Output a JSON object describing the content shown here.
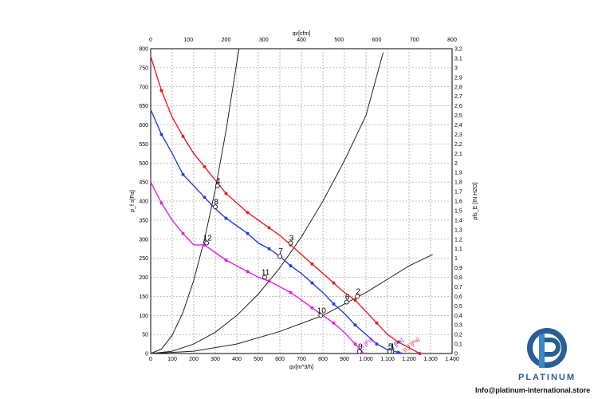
{
  "chart_data": {
    "type": "line",
    "x_bottom": {
      "label": "qv[m^3/h]",
      "range": [
        0,
        1400
      ],
      "ticks": [
        0,
        100,
        200,
        300,
        400,
        500,
        600,
        700,
        800,
        900,
        1000,
        1100,
        1200,
        1300,
        1400
      ],
      "tick_labels": [
        "0",
        "100",
        "200",
        "300",
        "400",
        "500",
        "600",
        "700",
        "800",
        "900",
        "1.000",
        "1.100",
        "1.200",
        "1.300",
        "1.400"
      ]
    },
    "x_top": {
      "label": "qv[cfm]",
      "range": [
        0,
        800
      ],
      "ticks": [
        0,
        100,
        200,
        300,
        400,
        500,
        600,
        700,
        800
      ],
      "tick_labels": [
        "0",
        "100",
        "200",
        "300",
        "400",
        "500",
        "600",
        "700",
        "800"
      ]
    },
    "y_left": {
      "label": "p_f s[Pa]",
      "range": [
        0,
        800
      ],
      "ticks": [
        0,
        50,
        100,
        150,
        200,
        250,
        300,
        350,
        400,
        450,
        500,
        550,
        600,
        650,
        700,
        750,
        800
      ],
      "tick_labels": [
        "0",
        "50",
        "100",
        "150",
        "200",
        "250",
        "300",
        "350",
        "400",
        "450",
        "500",
        "550",
        "600",
        "650",
        "700",
        "750",
        "800"
      ]
    },
    "y_right": {
      "label": "pfs_E [IN H2O]",
      "range": [
        0,
        3.2
      ],
      "ticks": [
        0,
        0.1,
        0.2,
        0.3,
        0.4,
        0.5,
        0.6,
        0.7,
        0.8,
        0.9,
        1,
        1.1,
        1.2,
        1.3,
        1.4,
        1.5,
        1.6,
        1.7,
        1.8,
        1.9,
        2,
        2.1,
        2.2,
        2.3,
        2.4,
        2.5,
        2.6,
        2.7,
        2.8,
        2.9,
        3,
        3.1,
        3.2
      ],
      "tick_labels": [
        "0",
        "0,1",
        "0,2",
        "0,3",
        "0,4",
        "0,5",
        "0,6",
        "0,7",
        "0,8",
        "0,9",
        "1",
        "1,1",
        "1,2",
        "1,3",
        "1,4",
        "1,5",
        "1,6",
        "1,7",
        "1,8",
        "1,9",
        "2",
        "2,1",
        "2,2",
        "2,3",
        "2,4",
        "2,5",
        "2,6",
        "2,7",
        "2,8",
        "2,9",
        "3",
        "3,1",
        "3,2"
      ]
    },
    "grid": true,
    "series": [
      {
        "name": "p_f [Pa]",
        "color": "#e8202a",
        "x": [
          0,
          50,
          100,
          150,
          200,
          250,
          300,
          350,
          400,
          450,
          500,
          550,
          600,
          650,
          700,
          750,
          800,
          850,
          900,
          950,
          1000,
          1050,
          1100,
          1150,
          1200,
          1250
        ],
        "y": [
          780,
          690,
          620,
          570,
          525,
          490,
          455,
          420,
          395,
          370,
          350,
          330,
          310,
          285,
          260,
          235,
          210,
          185,
          160,
          140,
          110,
          80,
          50,
          30,
          15,
          0
        ]
      },
      {
        "name": "p_f [Pa]",
        "color": "#2340e0",
        "x": [
          0,
          50,
          100,
          150,
          200,
          250,
          300,
          350,
          400,
          450,
          500,
          550,
          600,
          650,
          700,
          750,
          800,
          850,
          900,
          950,
          1000,
          1050,
          1100,
          1150,
          1175
        ],
        "y": [
          640,
          575,
          525,
          470,
          440,
          410,
          380,
          355,
          335,
          315,
          290,
          275,
          255,
          230,
          210,
          185,
          160,
          130,
          105,
          75,
          50,
          25,
          10,
          3,
          0
        ]
      },
      {
        "name": "p_f [Pa]",
        "color": "#e020e0",
        "x": [
          0,
          50,
          100,
          150,
          200,
          250,
          300,
          350,
          400,
          450,
          500,
          550,
          600,
          650,
          700,
          750,
          800,
          850,
          900,
          950,
          990
        ],
        "y": [
          450,
          395,
          350,
          315,
          285,
          285,
          265,
          245,
          230,
          215,
          200,
          190,
          175,
          160,
          140,
          120,
          100,
          80,
          55,
          25,
          0
        ]
      }
    ],
    "system_curves": [
      {
        "x": [
          0,
          50,
          100,
          150,
          200,
          250,
          300,
          350,
          410
        ],
        "y": [
          0,
          12,
          48,
          108,
          192,
          300,
          430,
          585,
          800
        ]
      },
      {
        "x": [
          0,
          100,
          200,
          300,
          400,
          500,
          600,
          700,
          800,
          900,
          1000,
          1080
        ],
        "y": [
          0,
          6,
          25,
          56,
          100,
          156,
          225,
          306,
          400,
          506,
          625,
          790
        ]
      },
      {
        "x": [
          0,
          200,
          400,
          600,
          800,
          1000,
          1200,
          1310
        ],
        "y": [
          0,
          6,
          25,
          58,
          100,
          160,
          230,
          260
        ]
      }
    ],
    "annotations": [
      {
        "text": "1",
        "x": 1120,
        "y": 5
      },
      {
        "text": "2",
        "x": 960,
        "y": 150
      },
      {
        "text": "3",
        "x": 650,
        "y": 290
      },
      {
        "text": "4",
        "x": 310,
        "y": 440
      },
      {
        "text": "5",
        "x": 1110,
        "y": 5
      },
      {
        "text": "6",
        "x": 910,
        "y": 135
      },
      {
        "text": "7",
        "x": 600,
        "y": 255
      },
      {
        "text": "8",
        "x": 300,
        "y": 385
      },
      {
        "text": "9",
        "x": 970,
        "y": 5
      },
      {
        "text": "10",
        "x": 790,
        "y": 100
      },
      {
        "text": "11",
        "x": 530,
        "y": 200
      },
      {
        "text": "12",
        "x": 260,
        "y": 290
      }
    ]
  },
  "logo": {
    "brand": "PLATINUM",
    "contact": "Info@platinum-international.store"
  }
}
